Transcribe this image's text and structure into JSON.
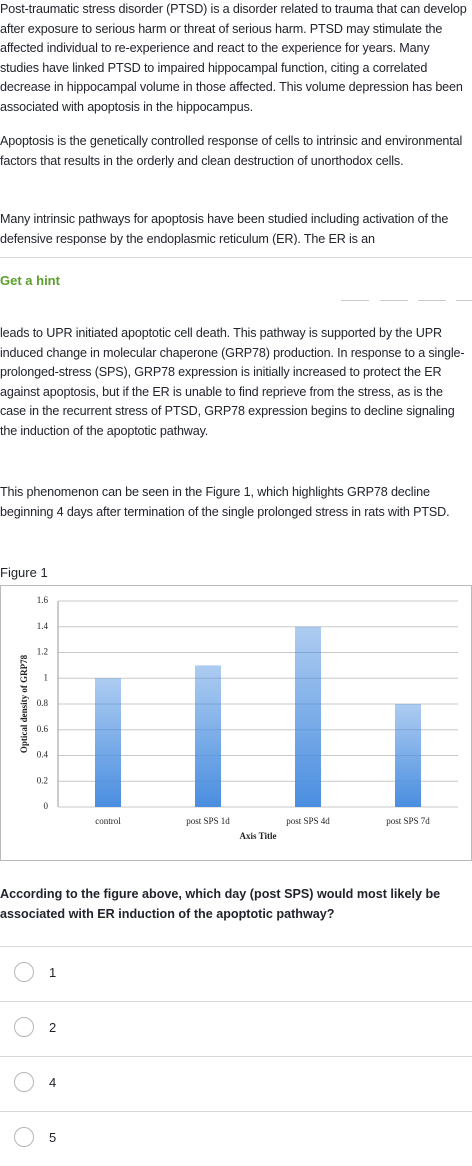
{
  "passage_top": {
    "paragraphs": [
      "Post-traumatic stress disorder (PTSD) is a disorder related to trauma that can develop after exposure to serious harm or threat of serious harm. PTSD may stimulate the affected individual to re-experience and react to the experience for years. Many studies have linked PTSD to impaired hippocampal function, citing a correlated decrease in hippocampal volume in those affected. This volume depression has been associated with apoptosis in the hippocampus.",
      "Apoptosis is the genetically controlled response of cells to intrinsic and environmental factors that results in the orderly and clean destruction of unorthodox cells.",
      "Many intrinsic pathways for apoptosis have been studied including activation of the defensive response by the endoplasmic reticulum (ER). The ER is an"
    ]
  },
  "hint": "Get a hint",
  "passage_bottom": {
    "paragraphs": [
      "leads to UPR initiated apoptotic cell death. This pathway is supported by the UPR induced change in molecular chaperone (GRP78) production. In response to a single-prolonged-stress (SPS), GRP78 expression is initially increased to protect the ER against apoptosis, but if the ER is unable to find reprieve from the stress, as is the case in the recurrent stress of PTSD, GRP78 expression begins to decline signaling the induction of the apoptotic pathway.",
      "This phenomenon can be seen in the Figure 1, which highlights GRP78 decline beginning 4 days after termination of the single prolonged stress in rats with PTSD."
    ]
  },
  "figure_label": "Figure 1",
  "chart_data": {
    "type": "bar",
    "categories": [
      "control",
      "post SPS 1d",
      "post SPS 4d",
      "post SPS 7d"
    ],
    "values": [
      1,
      1.1,
      1.4,
      0.8
    ],
    "color": "#4a8ee0",
    "ylim": [
      0,
      1.6
    ],
    "yticks": [
      0,
      0.2,
      0.4,
      0.6,
      0.8,
      1,
      1.2,
      1.4,
      1.6
    ],
    "grid": true,
    "ylabel": "Optical density of GRP78",
    "xlabel": "Axis Title"
  },
  "question": "According to the figure above, which day (post SPS) would most likely be associated with ER induction of the apoptotic pathway?",
  "choices": [
    "1",
    "2",
    "4",
    "5"
  ]
}
